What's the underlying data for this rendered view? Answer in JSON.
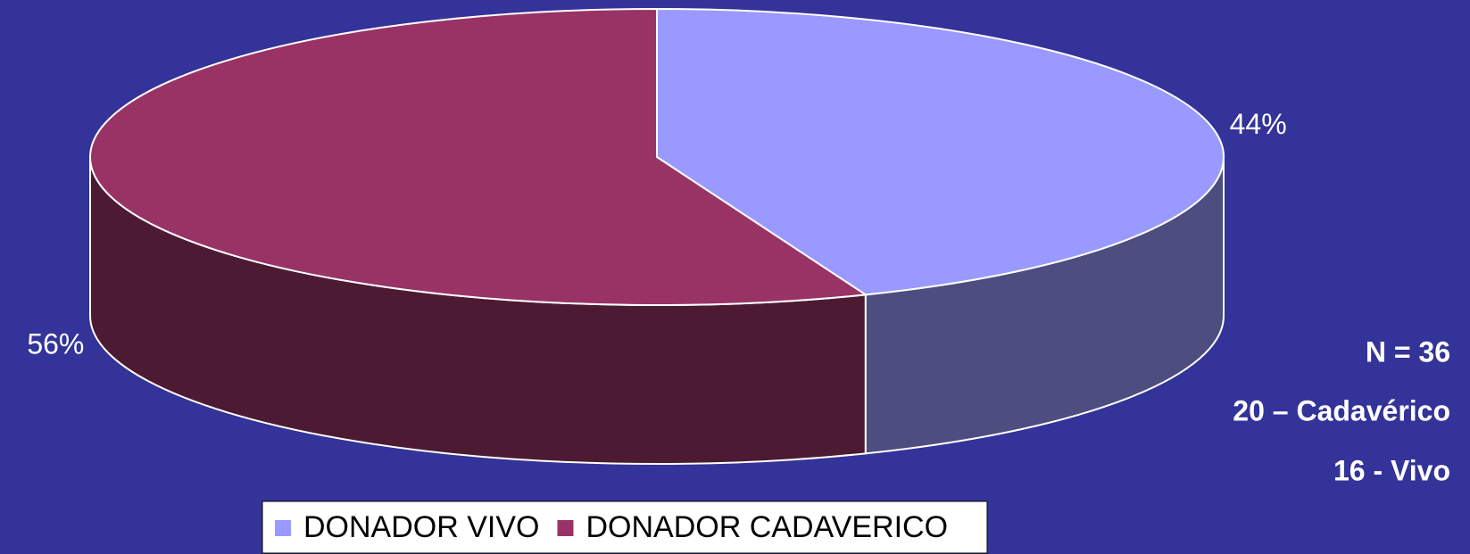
{
  "chart_data": {
    "type": "pie",
    "three_d": true,
    "categories": [
      "DONADOR VIVO",
      "DONADOR CADAVERICO"
    ],
    "values": [
      44,
      56
    ],
    "value_labels": [
      "44%",
      "56%"
    ],
    "colors": [
      "#9999ff",
      "#993366"
    ],
    "legend": "bottom",
    "annotations": [
      "N = 36",
      "20 – Cadavérico",
      "16 - Vivo"
    ]
  }
}
